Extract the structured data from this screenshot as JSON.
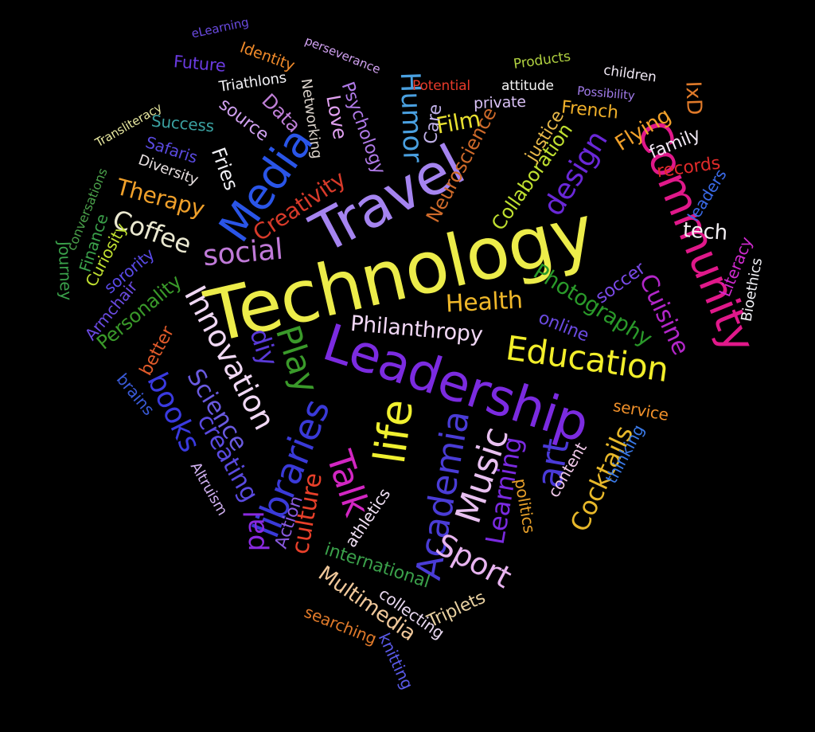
{
  "background": "#000000",
  "words": [
    {
      "text": "Technology",
      "color": "#ecec4a"
    },
    {
      "text": "Leadership",
      "color": "#7b2be0"
    },
    {
      "text": "Travel",
      "color": "#a584f0"
    },
    {
      "text": "Community",
      "color": "#e0188a"
    },
    {
      "text": "Media",
      "color": "#2a55e8"
    },
    {
      "text": "Education",
      "color": "#f2ee2a"
    },
    {
      "text": "Innovation",
      "color": "#f0d8f4"
    },
    {
      "text": "libraries",
      "color": "#3a3ad8"
    },
    {
      "text": "life",
      "color": "#f0f030"
    },
    {
      "text": "Academia",
      "color": "#4a3cd6"
    },
    {
      "text": "Music",
      "color": "#e8c0f0"
    },
    {
      "text": "Talk",
      "color": "#d226c2"
    },
    {
      "text": "Sport",
      "color": "#e8b4f0"
    },
    {
      "text": "Philanthropy",
      "color": "#f2d8f6"
    },
    {
      "text": "Photography",
      "color": "#2a9a2a"
    },
    {
      "text": "Health",
      "color": "#f0b82a"
    },
    {
      "text": "Cuisine",
      "color": "#b226c8"
    },
    {
      "text": "design",
      "color": "#6a28d8"
    },
    {
      "text": "social",
      "color": "#c07ad8"
    },
    {
      "text": "Coffee",
      "color": "#eae8d0"
    },
    {
      "text": "Therapy",
      "color": "#f0a02a"
    },
    {
      "text": "Creativity",
      "color": "#d83a2a"
    },
    {
      "text": "Play",
      "color": "#3a9a2a"
    },
    {
      "text": "diy",
      "color": "#5a3ad8"
    },
    {
      "text": "books",
      "color": "#3a3ae0"
    },
    {
      "text": "Science",
      "color": "#6a5ae0"
    },
    {
      "text": "creating",
      "color": "#5a4ae0"
    },
    {
      "text": "art",
      "color": "#4a3ad8"
    },
    {
      "text": "Learning",
      "color": "#7a2ae0"
    },
    {
      "text": "Cocktails",
      "color": "#e8b82a"
    },
    {
      "text": "culture",
      "color": "#e8402a"
    },
    {
      "text": "pal",
      "color": "#8a2ae0"
    },
    {
      "text": "Humor",
      "color": "#4aa0e0"
    },
    {
      "text": "Film",
      "color": "#e8e030"
    },
    {
      "text": "Neuroscience",
      "color": "#cf6a2a"
    },
    {
      "text": "Collaboration",
      "color": "#c0e030"
    },
    {
      "text": "justice",
      "color": "#e8b84a"
    },
    {
      "text": "Flying",
      "color": "#f0a02a"
    },
    {
      "text": "family",
      "color": "#f0e8f4"
    },
    {
      "text": "records",
      "color": "#e02a2a"
    },
    {
      "text": "leaders",
      "color": "#3a6ae8"
    },
    {
      "text": "tech",
      "color": "#f4f0f4"
    },
    {
      "text": "Literacy",
      "color": "#d02ad0"
    },
    {
      "text": "Bioethics",
      "color": "#f0f0f4"
    },
    {
      "text": "soccer",
      "color": "#7a4ae8"
    },
    {
      "text": "online",
      "color": "#6a4ae0"
    },
    {
      "text": "service",
      "color": "#f0902a"
    },
    {
      "text": "thinking",
      "color": "#3a7ae8"
    },
    {
      "text": "content",
      "color": "#f0c8e8"
    },
    {
      "text": "politics",
      "color": "#e8a02a"
    },
    {
      "text": "international",
      "color": "#3aa04a"
    },
    {
      "text": "Triplets",
      "color": "#e8d0a0"
    },
    {
      "text": "collecting",
      "color": "#e8d8f0"
    },
    {
      "text": "Multimedia",
      "color": "#f0c89a"
    },
    {
      "text": "searching",
      "color": "#e07a2a"
    },
    {
      "text": "knitting",
      "color": "#5a5ae8"
    },
    {
      "text": "athletics",
      "color": "#f0e0f4"
    },
    {
      "text": "Action",
      "color": "#8a5ae0"
    },
    {
      "text": "Altruism",
      "color": "#d0b0f0"
    },
    {
      "text": "brains",
      "color": "#3a5ad8"
    },
    {
      "text": "better",
      "color": "#e05a2a"
    },
    {
      "text": "Personality",
      "color": "#3a9a2a"
    },
    {
      "text": "Armchair",
      "color": "#6a4ae0"
    },
    {
      "text": "sorority",
      "color": "#5a4ae8"
    },
    {
      "text": "Curiosity",
      "color": "#c0e030"
    },
    {
      "text": "Finance",
      "color": "#3aa04a"
    },
    {
      "text": "Journey",
      "color": "#3aa04a"
    },
    {
      "text": "conversations",
      "color": "#4aa04a"
    },
    {
      "text": "Transliteracy",
      "color": "#e8e8a0"
    },
    {
      "text": "Success",
      "color": "#3aa0a0"
    },
    {
      "text": "Safaris",
      "color": "#5a4ae0"
    },
    {
      "text": "Diversity",
      "color": "#e8e0e0"
    },
    {
      "text": "Fries",
      "color": "#f0f0f4"
    },
    {
      "text": "source",
      "color": "#d0a0f0"
    },
    {
      "text": "Data",
      "color": "#c080d8"
    },
    {
      "text": "Networking",
      "color": "#d8d0c8"
    },
    {
      "text": "Love",
      "color": "#e0a0f0"
    },
    {
      "text": "Psychology",
      "color": "#b07ae8"
    },
    {
      "text": "Care",
      "color": "#c0b0e8"
    },
    {
      "text": "Triathlons",
      "color": "#f0f0f4"
    },
    {
      "text": "Identity",
      "color": "#f08a2a"
    },
    {
      "text": "Future",
      "color": "#6a3ae0"
    },
    {
      "text": "eLearning",
      "color": "#6a4ae0"
    },
    {
      "text": "perseverance",
      "color": "#d0a0f0"
    },
    {
      "text": "Potential",
      "color": "#e83a2a"
    },
    {
      "text": "attitude",
      "color": "#f4f4f4"
    },
    {
      "text": "private",
      "color": "#d8c0f4"
    },
    {
      "text": "Products",
      "color": "#b0d040"
    },
    {
      "text": "children",
      "color": "#f0e8f4"
    },
    {
      "text": "Possibility",
      "color": "#a07ae8"
    },
    {
      "text": "French",
      "color": "#f0b02a"
    },
    {
      "text": "IxD",
      "color": "#e07a2a"
    }
  ]
}
